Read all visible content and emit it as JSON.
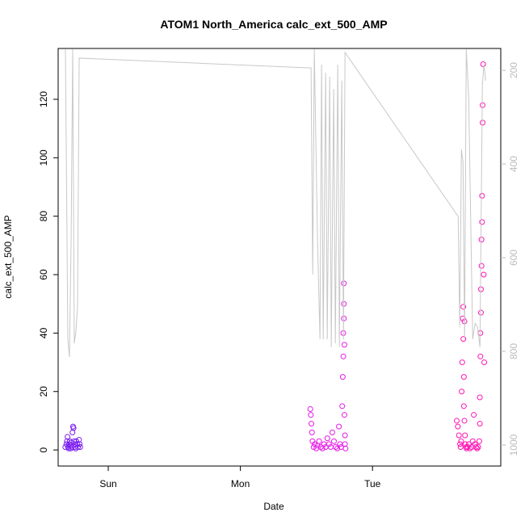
{
  "chart_data": {
    "type": "scatter",
    "title": "ATOM1 North_America calc_ext_500_AMP",
    "xlabel": "Date",
    "ylabel": "calc_ext_500_AMP",
    "xlim": [
      -9.1,
      71.3
    ],
    "xticks": [
      {
        "value": 0,
        "label": "Sun"
      },
      {
        "value": 24,
        "label": "Mon"
      },
      {
        "value": 48,
        "label": "Tue"
      }
    ],
    "ylim": [
      -5.5,
      137.4
    ],
    "yticks": [
      0,
      20,
      40,
      60,
      80,
      100,
      120
    ],
    "y2lim": [
      1044.8,
      153.4
    ],
    "y2ticks": [
      200,
      400,
      600,
      800,
      1000
    ],
    "y2color": "#bbbbbb",
    "series": [
      {
        "color": "#7a1cf0",
        "x": [
          -7.8,
          -7.6,
          -7.5,
          -7.4,
          -7.3,
          -7.2,
          -7.1,
          -7.0,
          -6.9,
          -6.8,
          -6.7,
          -6.6,
          -6.5,
          -6.4,
          -6.3,
          -6.2,
          -6.1,
          -6.0,
          -5.9,
          -5.8,
          -5.6,
          -5.5,
          -5.3,
          -5.2,
          -5.1
        ],
        "values": [
          1,
          2,
          3,
          4.5,
          1,
          0.5,
          2,
          3,
          1.5,
          0.5,
          2.5,
          1,
          6,
          8,
          7.5,
          3,
          1,
          2,
          0.5,
          3,
          2,
          1,
          3.5,
          2,
          1
        ]
      },
      {
        "color": "#e619e6",
        "x": [
          36.7,
          36.8,
          36.9,
          37.0,
          37.1,
          37.3,
          37.5,
          37.8,
          38.0,
          38.3,
          38.6,
          38.9,
          39.2,
          39.5,
          39.8,
          40.1,
          40.4,
          40.7,
          41.0,
          41.3,
          41.6,
          41.9,
          42.1,
          42.3,
          42.5,
          42.6,
          42.7,
          42.7,
          42.8,
          42.8,
          42.8,
          42.9,
          42.9,
          43.0,
          43.0,
          43.1
        ],
        "values": [
          14,
          12,
          9,
          6,
          3,
          1,
          2,
          0.5,
          1.5,
          3,
          1,
          0.5,
          2,
          1,
          4,
          2,
          1,
          6,
          3,
          1,
          0.5,
          8,
          2,
          1,
          15,
          25,
          32,
          40,
          45,
          50,
          57,
          36,
          12,
          5,
          2,
          0.5
        ]
      },
      {
        "color": "#ff14b4",
        "x": [
          63.3,
          63.5,
          63.7,
          63.9,
          64.0,
          64.1,
          64.2,
          64.3,
          64.4,
          64.5,
          64.5,
          64.6,
          64.6,
          64.7,
          64.7,
          64.8,
          64.9,
          65.0,
          65.1,
          65.3,
          65.5,
          65.7,
          66.0,
          66.2,
          66.4,
          66.6,
          66.8,
          67.0,
          67.2,
          67.4,
          67.5,
          67.5,
          67.6,
          67.6,
          67.7,
          67.7,
          67.8,
          67.8,
          67.9,
          67.9,
          68.0,
          68.0,
          68.1,
          68.2,
          68.3
        ],
        "values": [
          10,
          8,
          5,
          2,
          1,
          3,
          20,
          30,
          45,
          49,
          38,
          25,
          15,
          10,
          44,
          5,
          2,
          1,
          0.5,
          1,
          2,
          0.5,
          1,
          3,
          12,
          2,
          1,
          0.5,
          1,
          3,
          9,
          18,
          32,
          40,
          47,
          55,
          63,
          72,
          78,
          87,
          112,
          118,
          132,
          60,
          30
        ]
      },
      {
        "type": "line",
        "axis": "y2",
        "color": "#c8c8c8",
        "x": [
          -7.78,
          -7.34,
          -7.05,
          -6.75,
          -6.46,
          -6.17,
          -5.87,
          -5.58,
          -5.28,
          36.84,
          37.14,
          37.43,
          38.02,
          38.46,
          38.75,
          39.05,
          39.49,
          39.78,
          40.22,
          40.51,
          40.95,
          41.25,
          41.69,
          41.98,
          42.42,
          42.72,
          43.01,
          63.56,
          63.85,
          64.15,
          64.44,
          64.73,
          65.03,
          65.47,
          66.2,
          66.64,
          67.08,
          67.52,
          67.96,
          68.25,
          68.55
        ],
        "values": [
          155,
          774,
          812,
          567,
          155,
          783,
          757,
          705,
          174,
          195,
          636,
          155,
          567,
          774,
          188,
          774,
          205,
          774,
          214,
          791,
          240,
          783,
          188,
          791,
          222,
          774,
          162,
          512,
          748,
          369,
          395,
          774,
          155,
          257,
          774,
          740,
          748,
          791,
          231,
          188,
          222
        ]
      }
    ]
  }
}
